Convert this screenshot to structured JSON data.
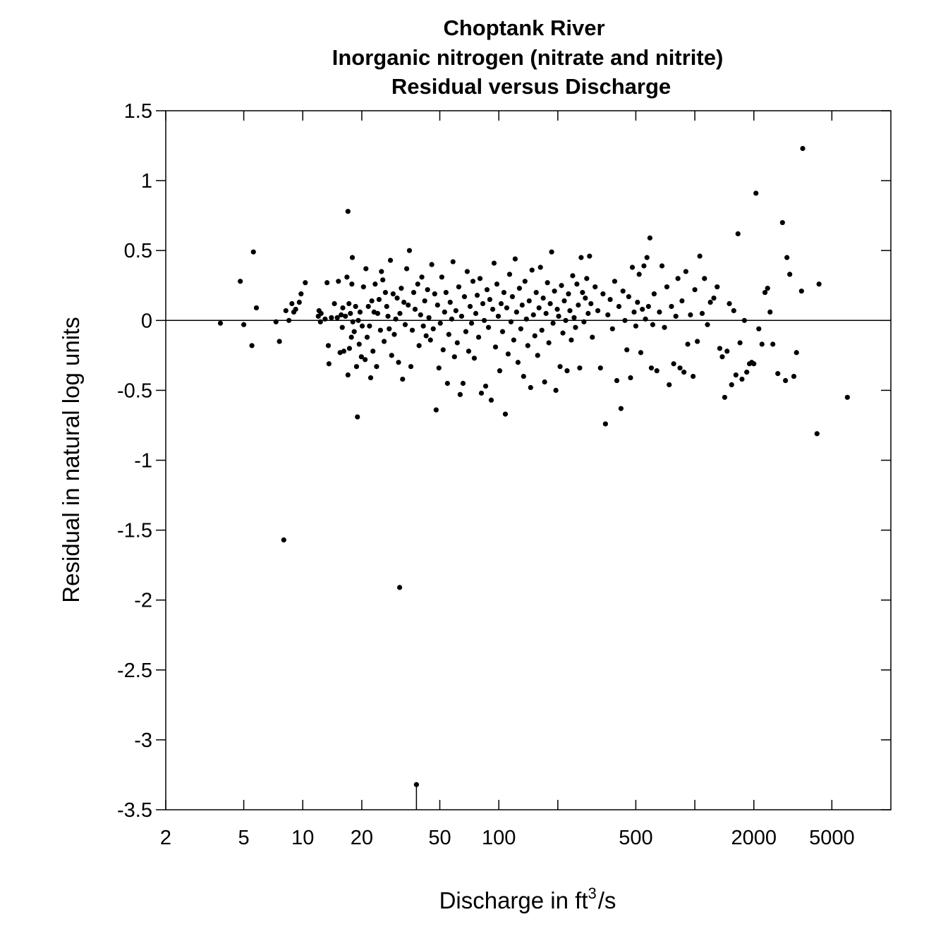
{
  "chart_data": {
    "type": "scatter",
    "title_lines": [
      "Choptank River",
      "Inorganic nitrogen (nitrate and nitrite)",
      "Residual versus Discharge"
    ],
    "xlabel_prefix": "Discharge in ft",
    "xlabel_sup": "3",
    "xlabel_suffix": "s",
    "ylabel": "Residual in natural log units",
    "x_scale": "log",
    "xlim": [
      2,
      10000
    ],
    "ylim": [
      -3.5,
      1.5
    ],
    "x_ticks": [
      2,
      5,
      10,
      20,
      50,
      100,
      500,
      2000,
      5000
    ],
    "x_tick_labels": [
      "2",
      "5",
      "10",
      "20",
      "50",
      "100",
      "500",
      "2000",
      "5000"
    ],
    "x_minor_ticks": [
      200,
      1000
    ],
    "y_ticks": [
      1.5,
      1,
      0.5,
      0,
      -0.5,
      -1,
      -1.5,
      -2,
      -2.5,
      -3,
      -3.5
    ],
    "y_tick_labels": [
      "1.5",
      "1",
      "0.5",
      "0",
      "-0.5",
      "-1",
      "-1.5",
      "-2",
      "-2.5",
      "-3",
      "-3.5"
    ],
    "reference_line_y": 0,
    "grid": false,
    "point_color": "#000000",
    "points": [
      [
        3.8,
        -0.02
      ],
      [
        4.8,
        0.28
      ],
      [
        5.0,
        -0.03
      ],
      [
        5.5,
        -0.18
      ],
      [
        5.6,
        0.49
      ],
      [
        5.8,
        0.09
      ],
      [
        7.3,
        -0.01
      ],
      [
        7.6,
        -0.15
      ],
      [
        8.0,
        -1.57
      ],
      [
        8.2,
        0.07
      ],
      [
        8.5,
        0.0
      ],
      [
        8.8,
        0.12
      ],
      [
        9.0,
        0.06
      ],
      [
        9.2,
        0.08
      ],
      [
        9.6,
        0.13
      ],
      [
        9.8,
        0.19
      ],
      [
        10.3,
        0.27
      ],
      [
        12.0,
        0.03
      ],
      [
        12.1,
        0.07
      ],
      [
        12.3,
        -0.01
      ],
      [
        12.4,
        0.05
      ],
      [
        13.0,
        0.01
      ],
      [
        13.3,
        0.27
      ],
      [
        13.5,
        -0.18
      ],
      [
        13.6,
        -0.31
      ],
      [
        14.0,
        0.02
      ],
      [
        14.5,
        0.12
      ],
      [
        15.0,
        0.02
      ],
      [
        15.2,
        0.28
      ],
      [
        15.5,
        -0.23
      ],
      [
        15.7,
        0.04
      ],
      [
        15.9,
        -0.05
      ],
      [
        16.0,
        0.09
      ],
      [
        16.2,
        -0.22
      ],
      [
        16.5,
        0.03
      ],
      [
        16.8,
        0.31
      ],
      [
        17.0,
        -0.39
      ],
      [
        17.0,
        0.78
      ],
      [
        17.2,
        0.12
      ],
      [
        17.3,
        -0.2
      ],
      [
        17.5,
        0.05
      ],
      [
        17.7,
        -0.12
      ],
      [
        17.8,
        0.26
      ],
      [
        17.9,
        0.45
      ],
      [
        18.0,
        -0.01
      ],
      [
        18.3,
        -0.08
      ],
      [
        18.6,
        0.1
      ],
      [
        18.8,
        -0.33
      ],
      [
        19.0,
        -0.69
      ],
      [
        19.2,
        0.0
      ],
      [
        19.4,
        -0.17
      ],
      [
        19.6,
        0.06
      ],
      [
        19.9,
        -0.26
      ],
      [
        20.1,
        -0.04
      ],
      [
        20.4,
        0.24
      ],
      [
        20.8,
        -0.28
      ],
      [
        21.0,
        0.37
      ],
      [
        21.3,
        -0.12
      ],
      [
        21.6,
        0.1
      ],
      [
        21.9,
        -0.04
      ],
      [
        22.2,
        -0.41
      ],
      [
        22.5,
        0.14
      ],
      [
        22.8,
        -0.22
      ],
      [
        23.1,
        0.06
      ],
      [
        23.4,
        0.26
      ],
      [
        23.8,
        -0.33
      ],
      [
        24.1,
        0.05
      ],
      [
        24.5,
        0.15
      ],
      [
        24.9,
        -0.07
      ],
      [
        25.2,
        0.35
      ],
      [
        25.6,
        0.29
      ],
      [
        26.0,
        -0.15
      ],
      [
        26.4,
        0.2
      ],
      [
        26.8,
        0.1
      ],
      [
        27.2,
        0.03
      ],
      [
        27.6,
        -0.06
      ],
      [
        28.0,
        0.43
      ],
      [
        28.4,
        -0.25
      ],
      [
        28.9,
        0.19
      ],
      [
        29.3,
        -0.1
      ],
      [
        29.8,
        0.01
      ],
      [
        30.3,
        0.16
      ],
      [
        30.8,
        -0.3
      ],
      [
        31.2,
        -1.91
      ],
      [
        31.3,
        0.05
      ],
      [
        31.8,
        0.23
      ],
      [
        32.3,
        -0.42
      ],
      [
        32.8,
        0.13
      ],
      [
        33.3,
        -0.03
      ],
      [
        33.9,
        0.37
      ],
      [
        34.5,
        0.11
      ],
      [
        35.0,
        0.5
      ],
      [
        35.6,
        -0.33
      ],
      [
        36.2,
        -0.07
      ],
      [
        36.8,
        0.2
      ],
      [
        37.4,
        0.08
      ],
      [
        38.0,
        -3.32
      ],
      [
        38.6,
        0.26
      ],
      [
        39.2,
        -0.18
      ],
      [
        39.9,
        0.04
      ],
      [
        40.5,
        0.31
      ],
      [
        41.2,
        -0.04
      ],
      [
        41.9,
        0.14
      ],
      [
        42.6,
        -0.11
      ],
      [
        43.3,
        0.22
      ],
      [
        44.0,
        0.02
      ],
      [
        44.8,
        -0.14
      ],
      [
        45.5,
        0.4
      ],
      [
        46.3,
        -0.06
      ],
      [
        47.1,
        0.19
      ],
      [
        47.9,
        -0.64
      ],
      [
        48.7,
        0.11
      ],
      [
        49.5,
        -0.34
      ],
      [
        50.3,
        -0.02
      ],
      [
        51.2,
        0.31
      ],
      [
        52.0,
        -0.21
      ],
      [
        52.9,
        0.06
      ],
      [
        53.8,
        0.2
      ],
      [
        54.7,
        -0.45
      ],
      [
        55.6,
        -0.1
      ],
      [
        56.5,
        0.13
      ],
      [
        57.5,
        0.01
      ],
      [
        58.4,
        0.42
      ],
      [
        59.4,
        -0.26
      ],
      [
        60.4,
        0.07
      ],
      [
        61.4,
        -0.16
      ],
      [
        62.5,
        0.24
      ],
      [
        63.5,
        -0.53
      ],
      [
        64.6,
        0.03
      ],
      [
        65.7,
        -0.45
      ],
      [
        66.8,
        0.17
      ],
      [
        67.9,
        -0.08
      ],
      [
        69.0,
        0.35
      ],
      [
        70.2,
        -0.22
      ],
      [
        71.4,
        0.1
      ],
      [
        72.6,
        -0.02
      ],
      [
        73.8,
        0.28
      ],
      [
        75.0,
        -0.27
      ],
      [
        76.3,
        0.05
      ],
      [
        77.6,
        0.18
      ],
      [
        78.9,
        -0.12
      ],
      [
        80.2,
        0.3
      ],
      [
        81.5,
        -0.52
      ],
      [
        82.9,
        0.12
      ],
      [
        84.3,
        0.0
      ],
      [
        85.7,
        -0.47
      ],
      [
        87.1,
        0.22
      ],
      [
        88.6,
        -0.05
      ],
      [
        90.0,
        0.15
      ],
      [
        91.5,
        -0.57
      ],
      [
        93.1,
        0.08
      ],
      [
        94.6,
        0.41
      ],
      [
        96.2,
        -0.19
      ],
      [
        97.8,
        0.26
      ],
      [
        99.4,
        0.03
      ],
      [
        101.1,
        -0.36
      ],
      [
        102.8,
        0.12
      ],
      [
        104.5,
        -0.08
      ],
      [
        106.2,
        0.2
      ],
      [
        108.0,
        -0.67
      ],
      [
        109.8,
        0.09
      ],
      [
        111.6,
        -0.24
      ],
      [
        113.5,
        0.33
      ],
      [
        115.4,
        -0.01
      ],
      [
        117.3,
        0.17
      ],
      [
        119.2,
        -0.14
      ],
      [
        121.2,
        0.44
      ],
      [
        123.2,
        0.06
      ],
      [
        125.3,
        -0.3
      ],
      [
        127.4,
        0.23
      ],
      [
        129.5,
        -0.06
      ],
      [
        131.6,
        0.11
      ],
      [
        133.8,
        -0.4
      ],
      [
        136.0,
        0.28
      ],
      [
        138.3,
        0.01
      ],
      [
        140.6,
        -0.18
      ],
      [
        142.9,
        0.14
      ],
      [
        145.3,
        -0.48
      ],
      [
        147.7,
        0.36
      ],
      [
        150.2,
        0.04
      ],
      [
        152.7,
        -0.11
      ],
      [
        155.2,
        0.2
      ],
      [
        157.8,
        -0.25
      ],
      [
        160.4,
        0.09
      ],
      [
        163.1,
        0.38
      ],
      [
        165.8,
        -0.07
      ],
      [
        168.5,
        0.16
      ],
      [
        171.3,
        -0.44
      ],
      [
        174.2,
        0.05
      ],
      [
        177.1,
        0.27
      ],
      [
        180.0,
        -0.16
      ],
      [
        183.0,
        0.12
      ],
      [
        186.0,
        0.49
      ],
      [
        189.1,
        -0.02
      ],
      [
        192.3,
        0.21
      ],
      [
        195.5,
        -0.5
      ],
      [
        198.7,
        0.08
      ],
      [
        202.0,
        0.03
      ],
      [
        205.4,
        -0.33
      ],
      [
        208.8,
        0.25
      ],
      [
        212.3,
        -0.09
      ],
      [
        215.8,
        0.14
      ],
      [
        219.4,
        0.0
      ],
      [
        223.0,
        -0.36
      ],
      [
        226.7,
        0.19
      ],
      [
        230.5,
        0.07
      ],
      [
        234.3,
        -0.14
      ],
      [
        238.2,
        0.32
      ],
      [
        242.2,
        0.02
      ],
      [
        246.2,
        -0.05
      ],
      [
        250.3,
        0.26
      ],
      [
        254.4,
        0.11
      ],
      [
        258.7,
        -0.34
      ],
      [
        263.0,
        0.45
      ],
      [
        267.3,
        0.2
      ],
      [
        271.8,
        -0.01
      ],
      [
        276.3,
        0.16
      ],
      [
        280.9,
        0.3
      ],
      [
        285.6,
        0.05
      ],
      [
        290.3,
        0.46
      ],
      [
        295.1,
        0.12
      ],
      [
        300.0,
        -0.12
      ],
      [
        310.0,
        0.24
      ],
      [
        320.0,
        0.07
      ],
      [
        330.0,
        -0.34
      ],
      [
        340.0,
        0.19
      ],
      [
        350.0,
        -0.74
      ],
      [
        360.0,
        0.04
      ],
      [
        370.0,
        0.15
      ],
      [
        380.0,
        -0.06
      ],
      [
        390.0,
        0.28
      ],
      [
        400.0,
        -0.43
      ],
      [
        410.0,
        0.1
      ],
      [
        420.0,
        -0.63
      ],
      [
        430.0,
        0.21
      ],
      [
        440.0,
        0.0
      ],
      [
        450.0,
        -0.21
      ],
      [
        460.0,
        0.17
      ],
      [
        470.0,
        -0.41
      ],
      [
        480.0,
        0.38
      ],
      [
        490.0,
        0.06
      ],
      [
        500.0,
        -0.04
      ],
      [
        510.0,
        0.13
      ],
      [
        520.0,
        0.33
      ],
      [
        530.0,
        -0.23
      ],
      [
        540.0,
        0.08
      ],
      [
        550.0,
        0.39
      ],
      [
        560.0,
        0.01
      ],
      [
        570.0,
        0.45
      ],
      [
        580.0,
        0.1
      ],
      [
        590.0,
        0.59
      ],
      [
        600.0,
        -0.34
      ],
      [
        610.0,
        -0.03
      ],
      [
        620.0,
        0.19
      ],
      [
        640.0,
        -0.36
      ],
      [
        660.0,
        0.06
      ],
      [
        680.0,
        0.39
      ],
      [
        700.0,
        -0.05
      ],
      [
        720.0,
        0.24
      ],
      [
        740.0,
        -0.46
      ],
      [
        760.0,
        0.1
      ],
      [
        780.0,
        -0.31
      ],
      [
        800.0,
        0.03
      ],
      [
        820.0,
        0.3
      ],
      [
        840.0,
        -0.34
      ],
      [
        860.0,
        0.14
      ],
      [
        880.0,
        -0.37
      ],
      [
        900.0,
        0.35
      ],
      [
        920.0,
        -0.17
      ],
      [
        950.0,
        0.04
      ],
      [
        980.0,
        -0.4
      ],
      [
        1000.0,
        0.22
      ],
      [
        1030.0,
        -0.15
      ],
      [
        1060.0,
        0.46
      ],
      [
        1090.0,
        0.05
      ],
      [
        1120.0,
        0.3
      ],
      [
        1160.0,
        -0.03
      ],
      [
        1200.0,
        0.13
      ],
      [
        1250.0,
        0.16
      ],
      [
        1300.0,
        0.24
      ],
      [
        1340.0,
        -0.2
      ],
      [
        1380.0,
        -0.26
      ],
      [
        1420.0,
        -0.55
      ],
      [
        1460.0,
        -0.22
      ],
      [
        1500.0,
        0.12
      ],
      [
        1540.0,
        -0.46
      ],
      [
        1580.0,
        0.07
      ],
      [
        1620.0,
        -0.39
      ],
      [
        1660.0,
        0.62
      ],
      [
        1700.0,
        -0.16
      ],
      [
        1740.0,
        -0.42
      ],
      [
        1790.0,
        0.0
      ],
      [
        1840.0,
        -0.37
      ],
      [
        1900.0,
        -0.31
      ],
      [
        1950.0,
        -0.3
      ],
      [
        2000.0,
        -0.31
      ],
      [
        2050.0,
        0.91
      ],
      [
        2120.0,
        -0.06
      ],
      [
        2200.0,
        -0.17
      ],
      [
        2280.0,
        0.2
      ],
      [
        2350.0,
        0.23
      ],
      [
        2420.0,
        0.06
      ],
      [
        2500.0,
        -0.17
      ],
      [
        2650.0,
        -0.38
      ],
      [
        2800.0,
        0.7
      ],
      [
        2900.0,
        -0.43
      ],
      [
        2950.0,
        0.45
      ],
      [
        3050.0,
        0.33
      ],
      [
        3200.0,
        -0.4
      ],
      [
        3300.0,
        -0.23
      ],
      [
        3500.0,
        0.21
      ],
      [
        3550.0,
        1.23
      ],
      [
        4200.0,
        -0.81
      ],
      [
        4300.0,
        0.26
      ],
      [
        6000.0,
        -0.55
      ]
    ]
  }
}
